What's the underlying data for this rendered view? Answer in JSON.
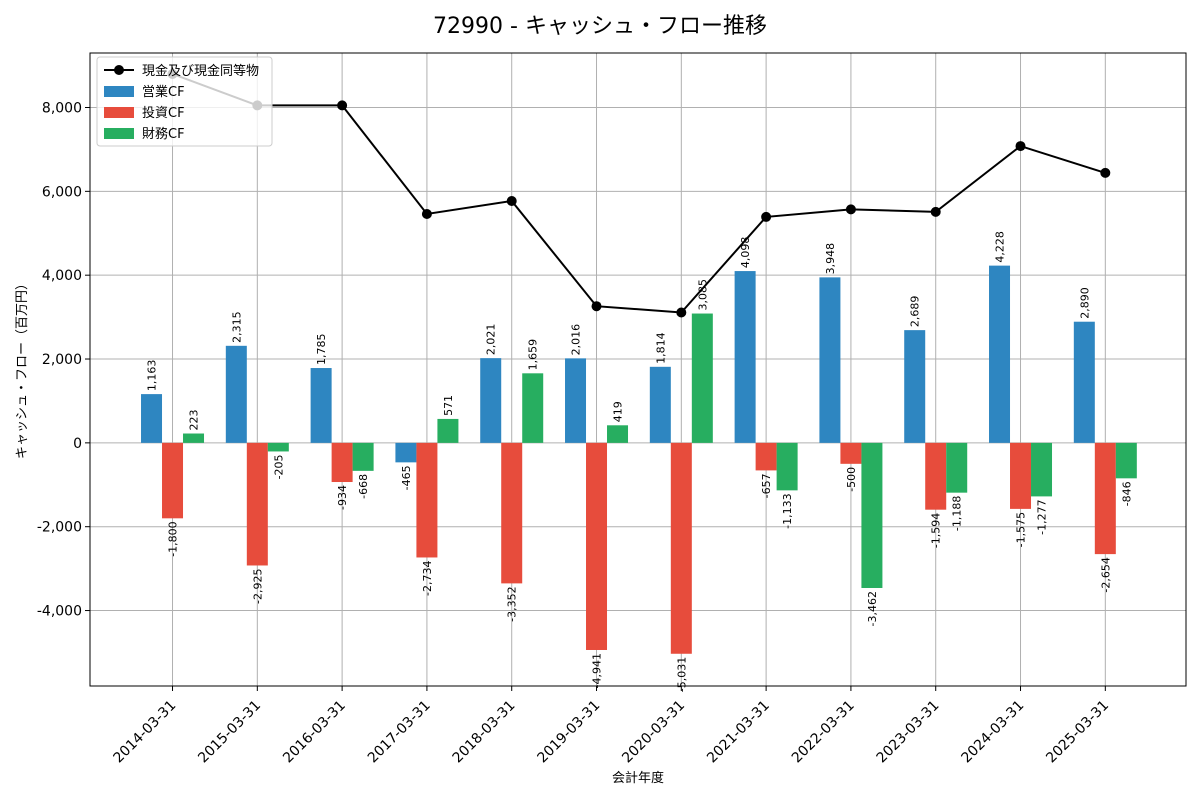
{
  "chart_data": {
    "type": "bar",
    "title": "72990 - キャッシュ・フロー推移",
    "xlabel": "会計年度",
    "ylabel": "キャッシュ・フロー（百万円）",
    "ylim": [
      -5800,
      9300
    ],
    "yticks": [
      -4000,
      -2000,
      0,
      2000,
      4000,
      6000,
      8000
    ],
    "ytick_labels": [
      "-4,000",
      "-2,000",
      "0",
      "2,000",
      "4,000",
      "6,000",
      "8,000"
    ],
    "grid": true,
    "legend_position": "top-left",
    "categories": [
      "2014-03-31",
      "2015-03-31",
      "2016-03-31",
      "2017-03-31",
      "2018-03-31",
      "2019-03-31",
      "2020-03-31",
      "2021-03-31",
      "2022-03-31",
      "2023-03-31",
      "2024-03-31",
      "2025-03-31"
    ],
    "series": [
      {
        "name": "営業CF",
        "kind": "bar",
        "color": "#2e86c1",
        "values": [
          1163,
          2315,
          1785,
          -465,
          2021,
          2016,
          1814,
          4098,
          3948,
          2689,
          4228,
          2890
        ],
        "labels": [
          "1,163",
          "2,315",
          "1,785",
          "-465",
          "2,021",
          "2,016",
          "1,814",
          "4,098",
          "3,948",
          "2,689",
          "4,228",
          "2,890"
        ]
      },
      {
        "name": "投資CF",
        "kind": "bar",
        "color": "#e74c3c",
        "values": [
          -1800,
          -2925,
          -934,
          -2734,
          -3352,
          -4941,
          -5031,
          -657,
          -500,
          -1594,
          -1575,
          -2654
        ],
        "labels": [
          "-1,800",
          "-2,925",
          "-934",
          "-2,734",
          "-3,352",
          "-4,941",
          "-5,031",
          "-657",
          "-500",
          "-1,594",
          "-1,575",
          "-2,654"
        ]
      },
      {
        "name": "財務CF",
        "kind": "bar",
        "color": "#27ae60",
        "values": [
          223,
          -205,
          -668,
          571,
          1659,
          419,
          3085,
          -1133,
          -3462,
          -1188,
          -1277,
          -846
        ],
        "labels": [
          "223",
          "-205",
          "-668",
          "571",
          "1,659",
          "419",
          "3,085",
          "-1,133",
          "-3,462",
          "-1,188",
          "-1,277",
          "-846"
        ]
      },
      {
        "name": "現金及び現金同等物",
        "kind": "line",
        "color": "#000000",
        "values": [
          8800,
          8050,
          8050,
          5460,
          5770,
          3260,
          3110,
          5390,
          5570,
          5510,
          7080,
          6440
        ]
      }
    ]
  }
}
